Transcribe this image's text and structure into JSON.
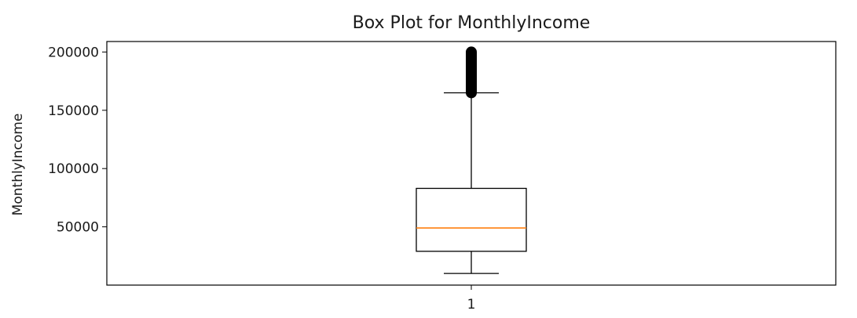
{
  "chart_data": {
    "type": "box",
    "title": "Box Plot for MonthlyIncome",
    "xlabel": "",
    "ylabel": "MonthlyIncome",
    "categories": [
      "1"
    ],
    "yticks": [
      50000,
      100000,
      150000,
      200000
    ],
    "ytick_labels": [
      "50000",
      "100000",
      "150000",
      "200000"
    ],
    "ylim": [
      0,
      209000
    ],
    "grid": false,
    "boxes": [
      {
        "category": "1",
        "whisker_low": 10000,
        "q1": 29000,
        "median": 49000,
        "q3": 83000,
        "whisker_high": 165000,
        "outliers_range": [
          165000,
          200000
        ]
      }
    ],
    "colors": {
      "median": "#ff7f0e",
      "box": "#000000",
      "outliers": "#000000"
    }
  }
}
